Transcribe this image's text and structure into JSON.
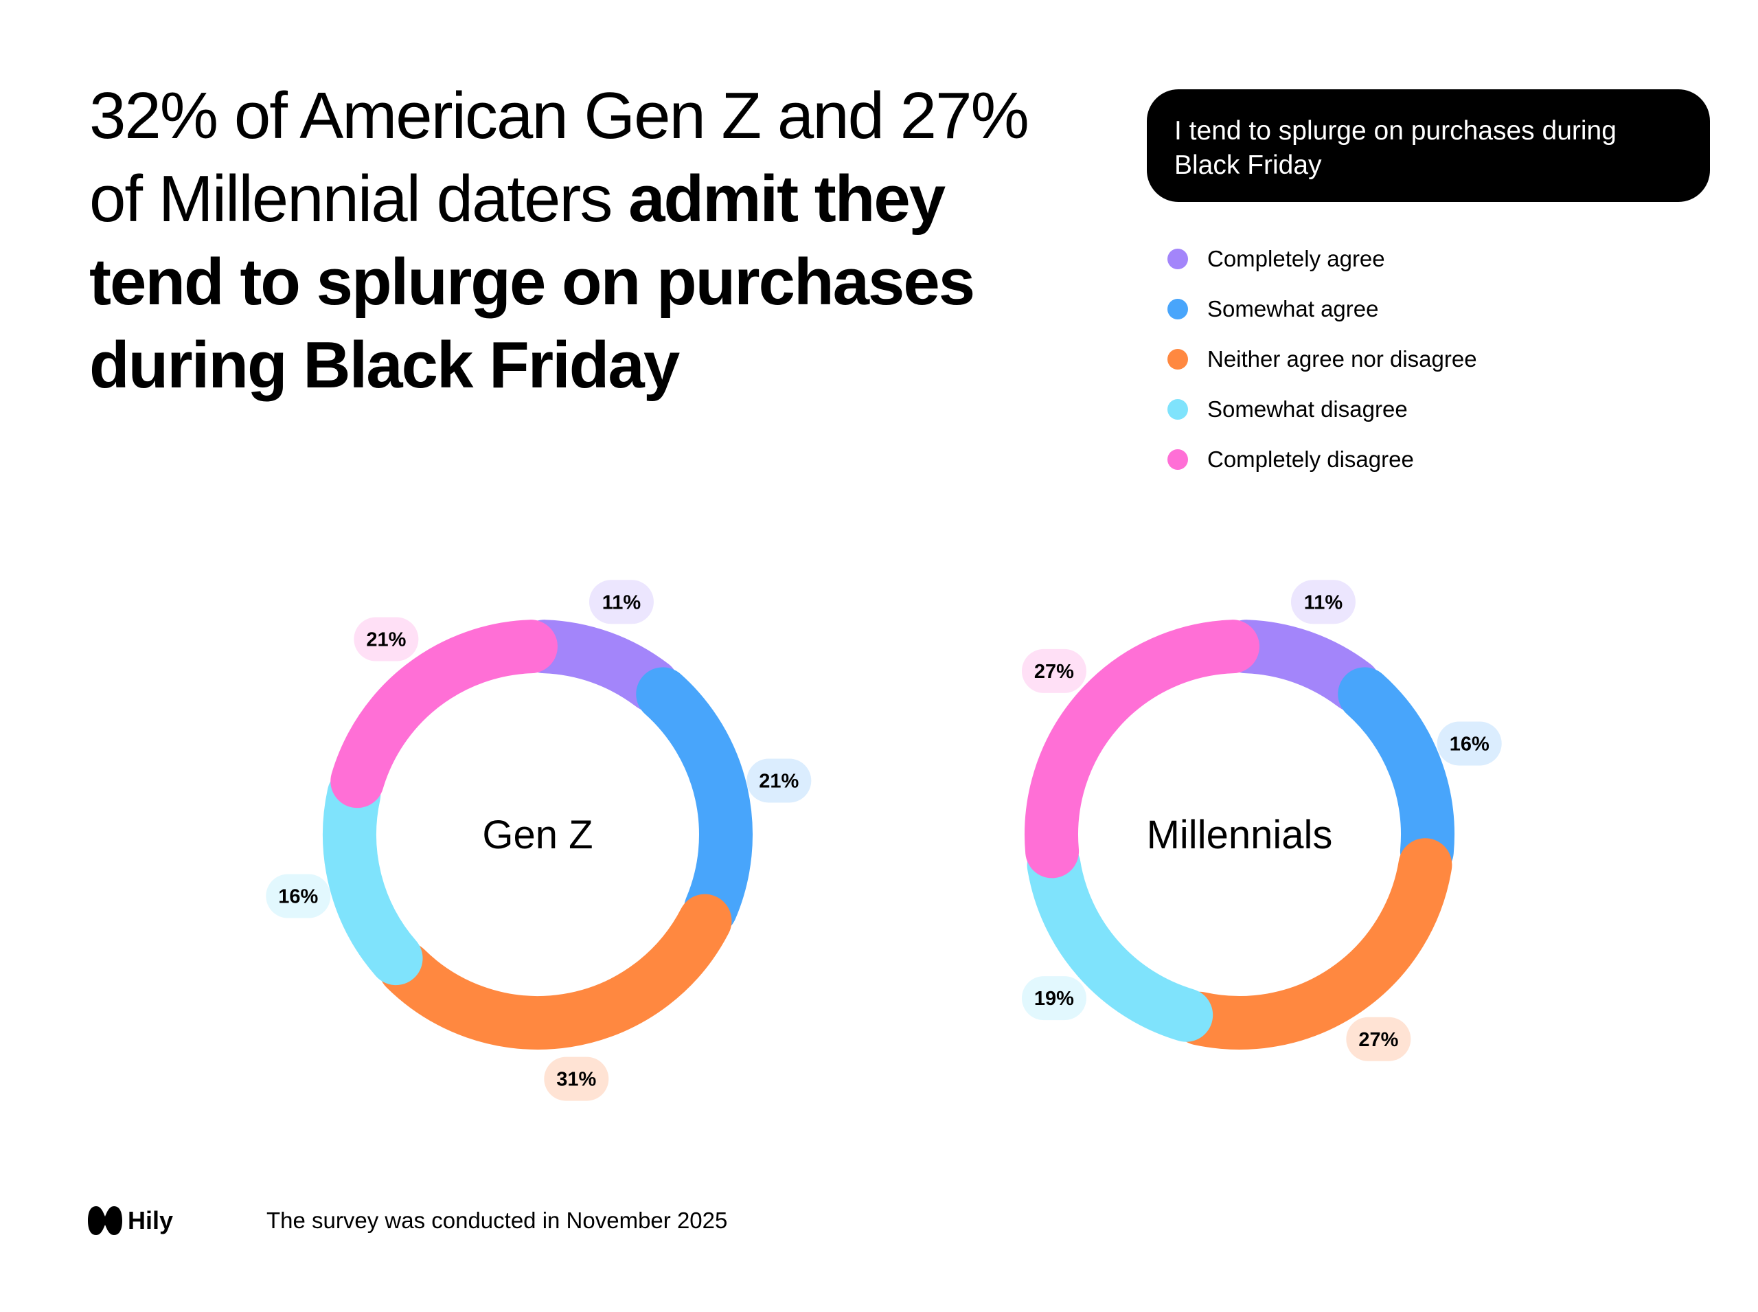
{
  "headline": {
    "regular": "32% of American Gen Z and 27% of Millennial daters ",
    "bold": "admit they tend to splurge on purchases during Black Friday"
  },
  "question": "I tend to splurge on purchases during Black Friday",
  "legend": [
    {
      "label": "Completely agree",
      "color": "#A385FA"
    },
    {
      "label": "Somewhat agree",
      "color": "#48A5FB"
    },
    {
      "label": "Neither agree nor disagree",
      "color": "#FF8840"
    },
    {
      "label": "Somewhat disagree",
      "color": "#7FE3FC"
    },
    {
      "label": "Completely disagree",
      "color": "#FF6FD6"
    }
  ],
  "chart_data": [
    {
      "type": "pie",
      "center_label": "Gen Z",
      "categories": [
        "Completely agree",
        "Somewhat agree",
        "Neither agree nor disagree",
        "Somewhat disagree",
        "Completely disagree"
      ],
      "values": [
        11,
        21,
        31,
        16,
        21
      ],
      "labels": [
        "11%",
        "21%",
        "31%",
        "16%",
        "21%"
      ]
    },
    {
      "type": "pie",
      "center_label": "Millennials",
      "categories": [
        "Completely agree",
        "Somewhat agree",
        "Neither agree nor disagree",
        "Somewhat disagree",
        "Completely disagree"
      ],
      "values": [
        11,
        16,
        27,
        19,
        27
      ],
      "labels": [
        "11%",
        "16%",
        "27%",
        "19%",
        "27%"
      ]
    }
  ],
  "label_bg_colors": [
    "#ECE6FE",
    "#DBEDFE",
    "#FFE3D4",
    "#E2F8FE",
    "#FFE0F6"
  ],
  "footer": {
    "brand": "Hily",
    "note": "The survey was conducted in November 2025"
  }
}
